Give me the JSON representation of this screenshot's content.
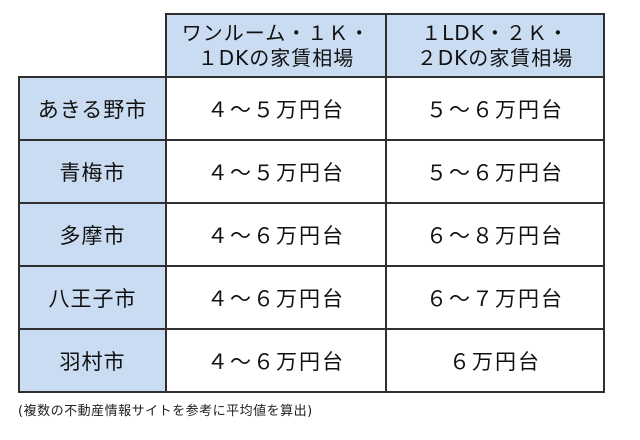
{
  "table": {
    "header": {
      "col_a": [
        "ワンルーム・１Ｋ・",
        "１DKの家賃相場"
      ],
      "col_b": [
        "１LDK・２Ｋ・",
        "２DKの家賃相場"
      ]
    },
    "rows": [
      {
        "city": "あきる野市",
        "col_a": "４～５万円台",
        "col_b": "５～６万円台"
      },
      {
        "city": "青梅市",
        "col_a": "４～５万円台",
        "col_b": "５～６万円台"
      },
      {
        "city": "多摩市",
        "col_a": "４～６万円台",
        "col_b": "６～８万円台"
      },
      {
        "city": "八王子市",
        "col_a": "４～６万円台",
        "col_b": "６～７万円台"
      },
      {
        "city": "羽村市",
        "col_a": "４～６万円台",
        "col_b": "６万円台"
      }
    ]
  },
  "note": "(複数の不動産情報サイトを参考に平均値を算出)",
  "colors": {
    "header_bg": "#c9dcf1",
    "border": "#2f2f2f"
  }
}
